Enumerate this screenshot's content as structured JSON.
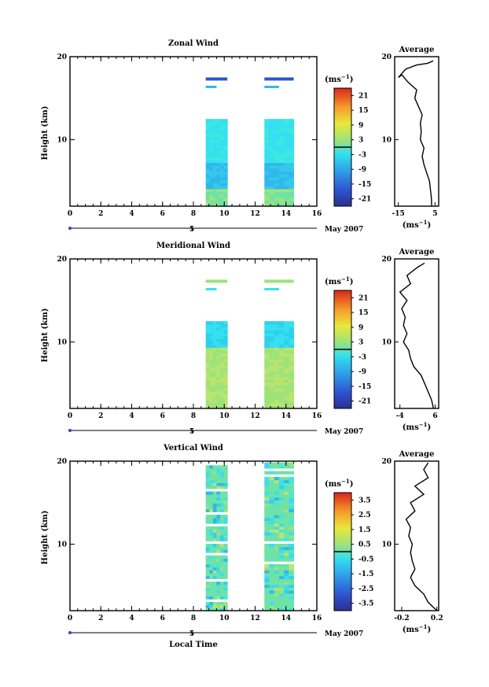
{
  "chart_data": [
    {
      "type": "heatmap",
      "title": "Zonal Wind",
      "ylabel": "Height (km)",
      "x_ticks": [
        "0",
        "2",
        "4",
        "6",
        "8",
        "10",
        "12",
        "14",
        "16"
      ],
      "y_ticks": [
        "20",
        "10"
      ],
      "xlim": [
        0,
        16
      ],
      "ylim": [
        2,
        20
      ],
      "date_axis": {
        "ticks": [
          "5"
        ],
        "label": "May 2007"
      },
      "colorbar": {
        "unit": "(ms",
        "unit_sup": "−1",
        "unit_close": ")",
        "ticks": [
          "21",
          "15",
          "9",
          "3",
          "-3",
          "-9",
          "-15",
          "-21"
        ],
        "range": [
          -24,
          24
        ]
      },
      "data_blocks": [
        {
          "x": [
            8.8,
            10.2
          ],
          "y": [
            2,
            12.5
          ]
        },
        {
          "x": [
            12.6,
            14.5
          ],
          "y": [
            2,
            12.5
          ]
        }
      ],
      "average": {
        "title": "Average",
        "xlabel": "(ms",
        "xlabel_sup": "−1",
        "xlabel_close": ")",
        "x_ticks": [
          "-15",
          "5"
        ],
        "xlim": [
          -17,
          7
        ],
        "y_ticks": [
          "20",
          "10"
        ],
        "profile": [
          [
            3.2,
            2
          ],
          [
            3,
            3
          ],
          [
            2.5,
            4
          ],
          [
            2,
            5
          ],
          [
            0.5,
            6
          ],
          [
            -1,
            7
          ],
          [
            -2,
            8
          ],
          [
            -1,
            9
          ],
          [
            -3,
            10
          ],
          [
            -2.5,
            11
          ],
          [
            -3,
            12
          ],
          [
            -2,
            13
          ],
          [
            -4,
            14
          ],
          [
            -6,
            15
          ],
          [
            -5,
            16
          ],
          [
            -10,
            17
          ],
          [
            -13,
            17.8
          ],
          [
            -15,
            17.5
          ],
          [
            -11,
            18.5
          ],
          [
            -5,
            19
          ],
          [
            1,
            19.2
          ],
          [
            4,
            19.5
          ]
        ]
      }
    },
    {
      "type": "heatmap",
      "title": "Meridional Wind",
      "ylabel": "Height (km)",
      "x_ticks": [
        "0",
        "2",
        "4",
        "6",
        "8",
        "10",
        "12",
        "14",
        "16"
      ],
      "y_ticks": [
        "20",
        "10"
      ],
      "xlim": [
        0,
        16
      ],
      "ylim": [
        2,
        20
      ],
      "date_axis": {
        "ticks": [
          "5"
        ],
        "label": "May 2007"
      },
      "colorbar": {
        "unit": "(ms",
        "unit_sup": "−1",
        "unit_close": ")",
        "ticks": [
          "21",
          "15",
          "9",
          "3",
          "-3",
          "-9",
          "-15",
          "-21"
        ],
        "range": [
          -24,
          24
        ]
      },
      "data_blocks": [
        {
          "x": [
            8.8,
            10.2
          ],
          "y": [
            2,
            12.5
          ]
        },
        {
          "x": [
            12.6,
            14.5
          ],
          "y": [
            2,
            12.5
          ]
        }
      ],
      "average": {
        "title": "Average",
        "xlabel": "(ms",
        "xlabel_sup": "−1",
        "xlabel_close": ")",
        "x_ticks": [
          "-4",
          "6"
        ],
        "xlim": [
          -5.5,
          7
        ],
        "y_ticks": [
          "20",
          "10"
        ],
        "profile": [
          [
            5.5,
            2
          ],
          [
            5,
            3
          ],
          [
            4,
            4
          ],
          [
            3,
            5
          ],
          [
            2,
            6
          ],
          [
            0,
            7
          ],
          [
            -1,
            8
          ],
          [
            -1.5,
            9
          ],
          [
            -3,
            10
          ],
          [
            -2,
            11
          ],
          [
            -3,
            12
          ],
          [
            -2.5,
            13
          ],
          [
            -3.5,
            14
          ],
          [
            -2,
            15
          ],
          [
            -4,
            16
          ],
          [
            -1,
            17
          ],
          [
            -2,
            18
          ],
          [
            1,
            19
          ],
          [
            3,
            19.5
          ]
        ]
      }
    },
    {
      "type": "heatmap",
      "title": "Vertical Wind",
      "ylabel": "Height (km)",
      "xlabel": "Local Time",
      "x_ticks": [
        "0",
        "2",
        "4",
        "6",
        "8",
        "10",
        "12",
        "14",
        "16"
      ],
      "y_ticks": [
        "20",
        "10"
      ],
      "xlim": [
        0,
        16
      ],
      "ylim": [
        2,
        20
      ],
      "date_axis": {
        "ticks": [
          "5"
        ],
        "label": "May 2007"
      },
      "colorbar": {
        "unit": "(ms",
        "unit_sup": "−1",
        "unit_close": ")",
        "ticks": [
          "3.5",
          "2.5",
          "1.5",
          "0.5",
          "-0.5",
          "-1.5",
          "-2.5",
          "-3.5"
        ],
        "range": [
          -4,
          4
        ]
      },
      "data_blocks": [
        {
          "x": [
            8.8,
            10.2
          ],
          "y": [
            2,
            19.8
          ]
        },
        {
          "x": [
            12.6,
            14.5
          ],
          "y": [
            2,
            19.8
          ]
        }
      ],
      "average": {
        "title": "Average",
        "xlabel": "(ms",
        "xlabel_sup": "−1",
        "xlabel_close": ")",
        "x_ticks": [
          "-0.2",
          "0.2"
        ],
        "xlim": [
          -0.28,
          0.22
        ],
        "y_ticks": [
          "20",
          "10"
        ],
        "profile": [
          [
            0.2,
            2
          ],
          [
            0.1,
            3
          ],
          [
            0.05,
            4
          ],
          [
            -0.05,
            5
          ],
          [
            -0.1,
            6
          ],
          [
            -0.05,
            7
          ],
          [
            -0.08,
            8
          ],
          [
            -0.1,
            9
          ],
          [
            -0.08,
            10
          ],
          [
            -0.12,
            11
          ],
          [
            -0.1,
            12
          ],
          [
            -0.15,
            13
          ],
          [
            -0.05,
            14
          ],
          [
            -0.1,
            15
          ],
          [
            0.05,
            16
          ],
          [
            -0.05,
            17
          ],
          [
            0.1,
            18
          ],
          [
            0.05,
            19
          ],
          [
            0.1,
            19.8
          ]
        ]
      }
    }
  ]
}
